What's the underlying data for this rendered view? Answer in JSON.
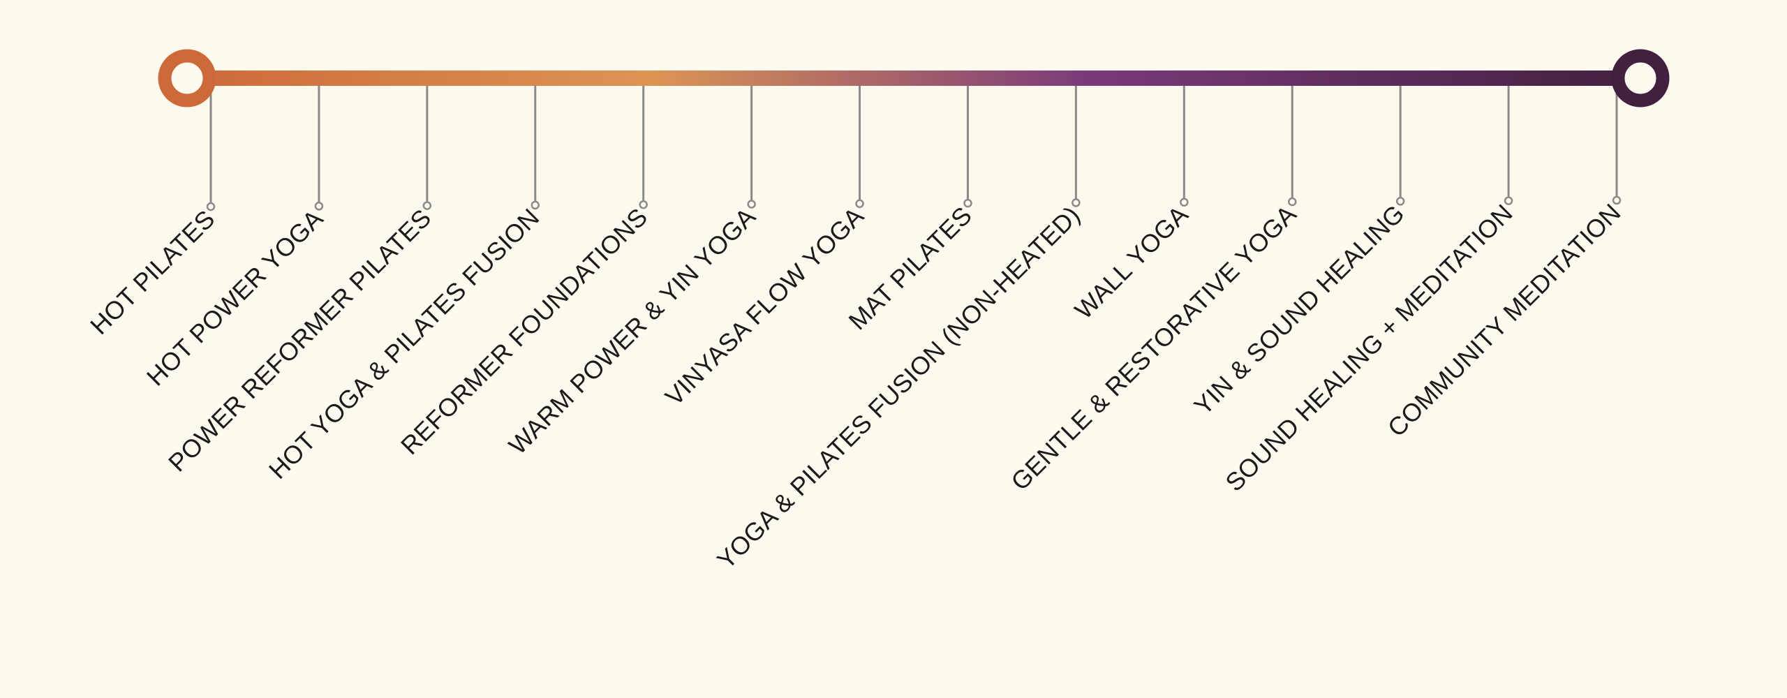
{
  "colors": {
    "background": "#fdf9ee",
    "gradient_start": "#cd6a3a",
    "gradient_mid_warm": "#dc9455",
    "gradient_mid_purple": "#7a3a7a",
    "gradient_end": "#42203f",
    "connector": "#8a8a8a",
    "label_text": "#1a1a1a"
  },
  "spectrum": {
    "start_marker": "ring",
    "end_marker": "ring"
  },
  "classes": [
    {
      "label": "HOT PILATES"
    },
    {
      "label": "HOT POWER YOGA"
    },
    {
      "label": "POWER REFORMER PILATES"
    },
    {
      "label": "HOT YOGA & PILATES FUSION"
    },
    {
      "label": "REFORMER FOUNDATIONS"
    },
    {
      "label": "WARM POWER & YIN YOGA"
    },
    {
      "label": "VINYASA FLOW YOGA"
    },
    {
      "label": "MAT PILATES"
    },
    {
      "label": "YOGA & PILATES FUSION (NON-HEATED)"
    },
    {
      "label": "WALL YOGA"
    },
    {
      "label": "GENTLE & RESTORATIVE YOGA"
    },
    {
      "label": "YIN & SOUND HEALING"
    },
    {
      "label": "SOUND HEALING + MEDITATION"
    },
    {
      "label": "COMMUNITY MEDITATION"
    }
  ]
}
